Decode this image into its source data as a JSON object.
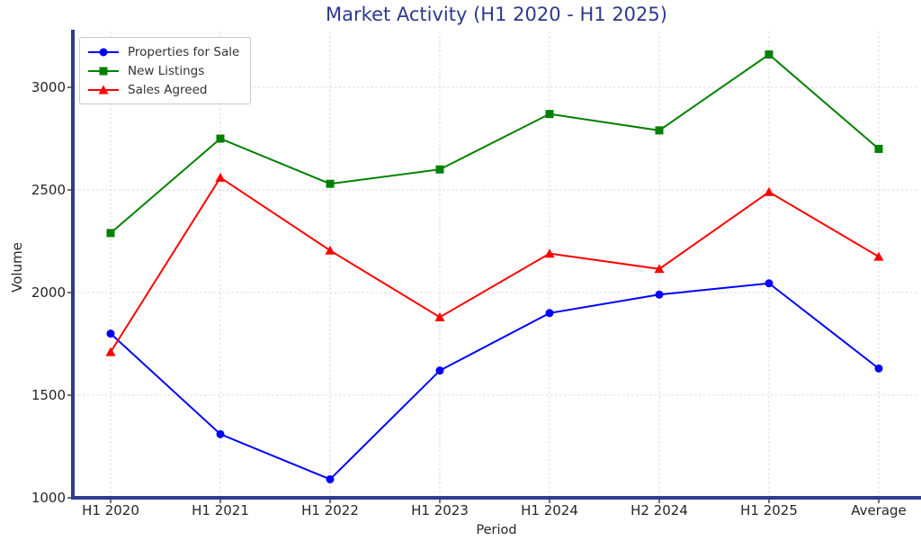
{
  "chart_data": {
    "type": "line",
    "title": "Market Activity (H1 2020 - H1 2025)",
    "xlabel": "Period",
    "ylabel": "Volume",
    "categories": [
      "H1 2020",
      "H1 2021",
      "H1 2022",
      "H1 2023",
      "H1 2024",
      "H2 2024",
      "H1 2025",
      "Average"
    ],
    "series": [
      {
        "name": "Properties for Sale",
        "color": "#0000ff",
        "marker": "circle",
        "values": [
          1800,
          1310,
          1090,
          1620,
          1900,
          1990,
          2045,
          1630
        ]
      },
      {
        "name": "New Listings",
        "color": "#008000",
        "marker": "square",
        "values": [
          2290,
          2750,
          2530,
          2600,
          2870,
          2790,
          3160,
          2700
        ]
      },
      {
        "name": "Sales Agreed",
        "color": "#ff0000",
        "marker": "triangle",
        "values": [
          1710,
          2560,
          2205,
          1880,
          2190,
          2115,
          2490,
          2175
        ]
      }
    ],
    "yticks": [
      1000,
      1500,
      2000,
      2500,
      3000
    ],
    "ylim": [
      1000,
      3272
    ],
    "grid": true,
    "legend_position": "upper left",
    "colors": {
      "title": "#2c3a8c",
      "spine": "#2e3d8f",
      "tick_label": "#262626",
      "grid": "#d9d9d9"
    }
  }
}
